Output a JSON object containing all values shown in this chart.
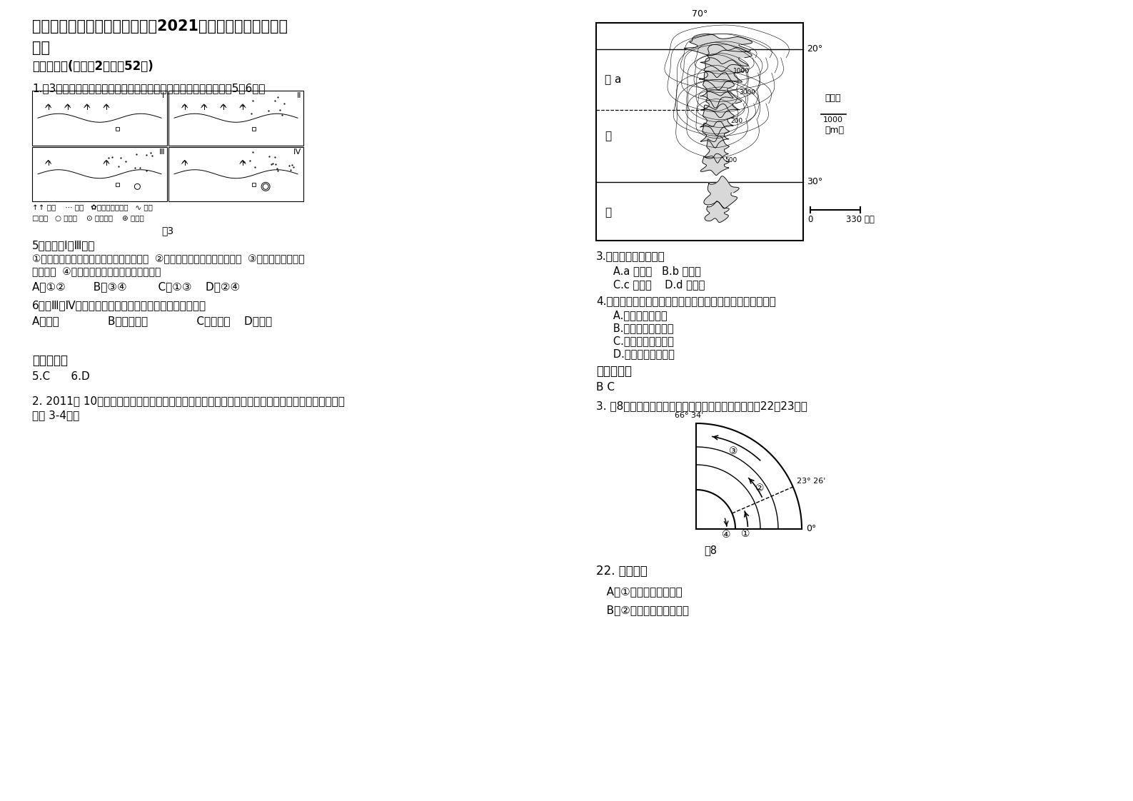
{
  "bg_color": "#ffffff",
  "title_part1": "辽宁省鞍山市海城西柳职业中学",
  "title_bold": "2021",
  "title_part2": "年高三地理模拟试卷含",
  "title_line2": "解析",
  "section1": "一、选择题(每小题2分，共52分)",
  "q1": "1.图3反映了我国东部某地区土地利用状况的变化过程。读图，回答5、6题。",
  "fig3": "图3",
  "q5_head": "5．图中从Ⅰ到Ⅲ阶段",
  "q5_body1": "①河流的丰水期流量增大，枯水期流量减小  ②城市人口增加，乡村人口减少  ③图示区域出现了城",
  "q5_body2": "市化现象  ④河流夏季流量减小，冬季流量增大",
  "q5_choices": "A．①②        B．③④         C．①③    D．②④",
  "q6_head": "6．从Ⅲ到Ⅳ阶段，导致图中农业生产变化的最主要因素是",
  "q6_choices": "A．政策              B．交通运输              C．劳动力    D．市场",
  "ref1_title": "参考答案：",
  "ref1_body": "5.C      6.D",
  "q2": "2. 2011年 10月，欧洲南方天文台将在下图中某处选址建天文台，安装世界最大的天文望远镜，读图",
  "q2b": "完成 3-4题。",
  "map_70": "70°",
  "map_20": "20°",
  "map_30": "30°",
  "map_tai": "太 a",
  "map_ping": "平",
  "map_yang": "洋",
  "legend_1000": "1000",
  "legend_text1": "等高线",
  "legend_text2": "（m）",
  "scale_0": "0",
  "scale_330": "330 千米",
  "q3": "3.天文台的最佳选址是",
  "q3_ab": "   A.a 地附近   B.b 地附近",
  "q3_cd": "   C.c 地附近    D.d 地附近",
  "q4": "4.该地成为全球最佳的天文观测点之一，其优越的自然条件是",
  "q4_a": "   A.海拔低，沙漠广",
  "q4_b": "   B.海拔低，空气洁净",
  "q4_c": "   C.海拔高，终年干燥",
  "q4_d": "   D.海拔高，冬季湿润",
  "ref2_title": "参考答案：",
  "ref2_body": "B C",
  "q3intro": "3. 图8为地球局部海域洋流分布模式图。读图，回答第22、23题。",
  "fig8": "图8",
  "q22": "22. 图中洋流",
  "q22a": "   A．①的流向为自南向北",
  "q22b": "   B．②可能流经南美西海岸",
  "circ_labels": [
    "①",
    "②",
    "③",
    "④"
  ],
  "lat_0": "0°",
  "lat_23": "23° 26'",
  "lat_66": "66° 34'"
}
